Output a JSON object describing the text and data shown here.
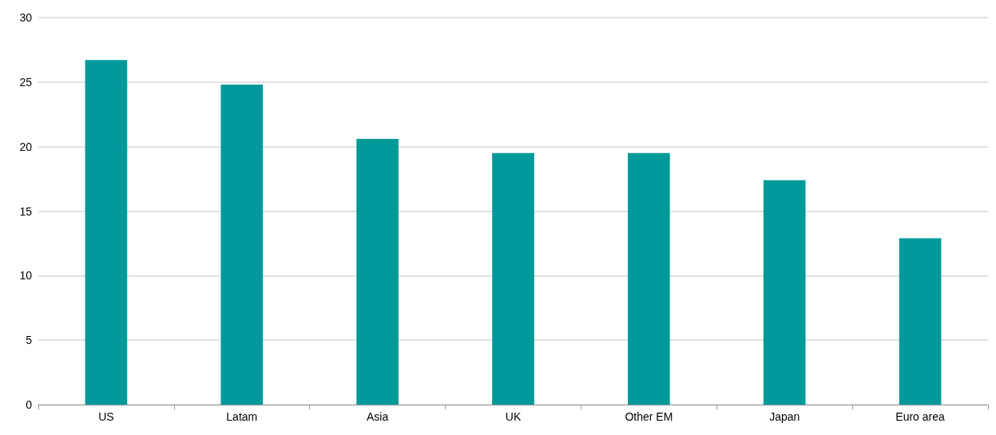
{
  "chart_data": {
    "type": "bar",
    "categories": [
      "US",
      "Latam",
      "Asia",
      "UK",
      "Other EM",
      "Japan",
      "Euro area"
    ],
    "values": [
      26.7,
      24.8,
      20.6,
      19.5,
      19.5,
      17.4,
      12.9
    ],
    "color": "#009999",
    "ylim": [
      0,
      30
    ],
    "yticks": [
      0,
      5,
      10,
      15,
      20,
      25,
      30
    ],
    "grid": "y"
  }
}
